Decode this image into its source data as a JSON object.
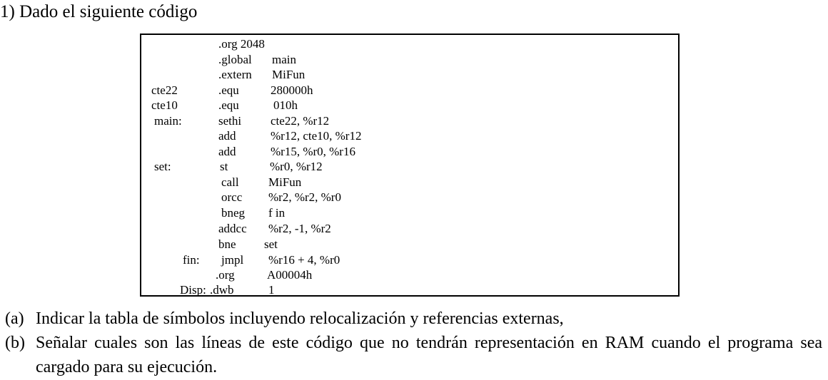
{
  "heading": "1) Dado el siguiente código",
  "code_lines": [
    {
      "label": "",
      "op": ".org 2048",
      "args": ""
    },
    {
      "label": "",
      "op": ".global",
      "args": "main"
    },
    {
      "label": "",
      "op": ".extern",
      "args": "MiFun"
    },
    {
      "label": "cte22",
      "op": ".equ",
      "args": "280000h"
    },
    {
      "label": "cte10",
      "op": ".equ",
      "args": "010h"
    },
    {
      "label": "main:",
      "op": "sethi",
      "args": "cte22, %r12"
    },
    {
      "label": "",
      "op": "add",
      "args": "%r12, cte10, %r12"
    },
    {
      "label": "",
      "op": "add",
      "args": "%r15, %r0, %r16"
    },
    {
      "label": "set:",
      "op": "st",
      "args": "%r0, %r12"
    },
    {
      "label": "",
      "op": "call",
      "args": "MiFun"
    },
    {
      "label": "",
      "op": "orcc",
      "args": "%r2, %r2, %r0"
    },
    {
      "label": "",
      "op": "bneg",
      "args": "f in"
    },
    {
      "label": "",
      "op": "addcc",
      "args": "%r2, -1, %r2"
    },
    {
      "label": "",
      "op": "bne",
      "args": "set"
    },
    {
      "label": "fin:",
      "op": "jmpl",
      "args": "%r16 + 4, %r0"
    },
    {
      "label": "",
      "op": ".org",
      "args": "A00004h"
    },
    {
      "label": "Disp:",
      "op": ".dwb",
      "args": "1"
    }
  ],
  "questions": [
    {
      "marker": "(a)",
      "text": "Indicar la tabla de símbolos  incluyendo relocalización y referencias externas,"
    },
    {
      "marker": "(b)",
      "text": "Señalar cuales son las líneas de este código que no tendrán representación en RAM cuando el programa sea cargado para su ejecución."
    }
  ]
}
